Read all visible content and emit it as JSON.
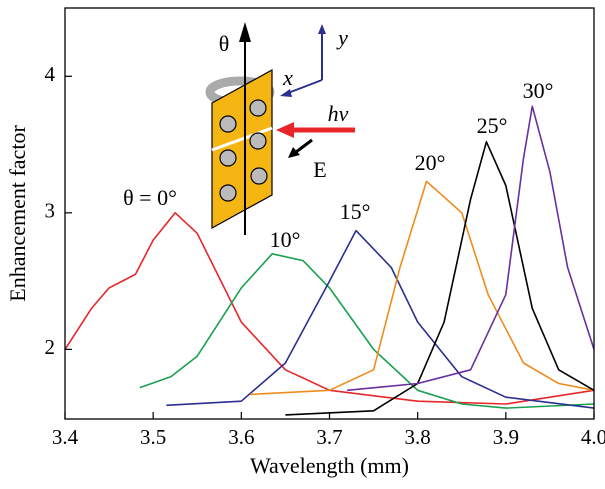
{
  "chart_data": {
    "type": "line",
    "xlabel": "Wavelength (mm)",
    "ylabel": "Enhancement factor",
    "xlim": [
      3.4,
      4.0
    ],
    "ylim": [
      1.49,
      4.5
    ],
    "xticks": [
      3.4,
      3.5,
      3.6,
      3.7,
      3.8,
      3.9,
      {
        "value": 4.0,
        "label": "4.0"
      }
    ],
    "yticks": [
      2,
      3,
      4
    ],
    "series": [
      {
        "name": "θ = 0°",
        "color": "#e8262a",
        "x": [
          3.4,
          3.43,
          3.45,
          3.48,
          3.5,
          3.525,
          3.55,
          3.6,
          3.65,
          3.7,
          3.8,
          3.9,
          4.0
        ],
        "values": [
          2.0,
          2.3,
          2.45,
          2.55,
          2.8,
          3.0,
          2.85,
          2.2,
          1.85,
          1.7,
          1.62,
          1.6,
          1.7
        ]
      },
      {
        "name": "10°",
        "color": "#1aa050",
        "x": [
          3.485,
          3.52,
          3.55,
          3.6,
          3.635,
          3.67,
          3.7,
          3.75,
          3.8,
          3.85,
          3.9,
          4.0
        ],
        "values": [
          1.72,
          1.8,
          1.95,
          2.45,
          2.7,
          2.65,
          2.45,
          2.0,
          1.7,
          1.6,
          1.57,
          1.6
        ]
      },
      {
        "name": "15°",
        "color": "#2b2f8f",
        "x": [
          3.515,
          3.6,
          3.65,
          3.7,
          3.73,
          3.77,
          3.8,
          3.85,
          3.9,
          4.0
        ],
        "values": [
          1.59,
          1.62,
          1.9,
          2.5,
          2.87,
          2.6,
          2.2,
          1.8,
          1.65,
          1.57
        ]
      },
      {
        "name": "20°",
        "color": "#f08c1e",
        "x": [
          3.61,
          3.7,
          3.75,
          3.78,
          3.81,
          3.85,
          3.88,
          3.92,
          3.96,
          4.0
        ],
        "values": [
          1.67,
          1.7,
          1.85,
          2.6,
          3.23,
          3.0,
          2.4,
          1.9,
          1.75,
          1.7
        ]
      },
      {
        "name": "25°",
        "color": "#000000",
        "x": [
          3.65,
          3.75,
          3.8,
          3.83,
          3.86,
          3.878,
          3.9,
          3.93,
          3.96,
          4.0
        ],
        "values": [
          1.52,
          1.55,
          1.75,
          2.2,
          3.1,
          3.52,
          3.2,
          2.3,
          1.85,
          1.7
        ]
      },
      {
        "name": "30°",
        "color": "#6a2fa0",
        "x": [
          3.72,
          3.8,
          3.86,
          3.9,
          3.92,
          3.93,
          3.95,
          3.97,
          4.0
        ],
        "values": [
          1.7,
          1.75,
          1.85,
          2.4,
          3.4,
          3.78,
          3.3,
          2.6,
          2.0
        ]
      }
    ],
    "inset_labels": [
      "θ",
      "y",
      "x",
      "hν",
      "E"
    ]
  }
}
